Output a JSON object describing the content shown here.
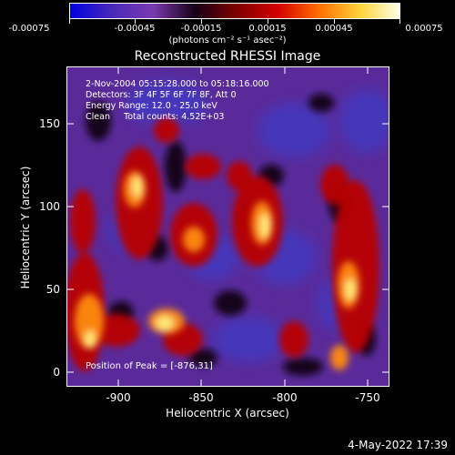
{
  "colorbar": {
    "tick_labels": [
      "-0.00075",
      "-0.00045",
      "-0.00015",
      "0.00015",
      "0.00045",
      "0.00075"
    ],
    "units_text": "(photons cm⁻² s⁻¹ asec⁻²)",
    "colors": [
      "#0000e0",
      "#4a2ab8",
      "#7a3ab0",
      "#160016",
      "#7a0000",
      "#d20000",
      "#ff6a00",
      "#ffd23a",
      "#ffffe6"
    ]
  },
  "title": "Reconstructed RHESSI Image",
  "info": {
    "line1": "2-Nov-2004 05:15:28.000 to 05:18:16.000",
    "line2": "Detectors: 3F 4F 5F 6F 7F 8F, Att 0",
    "line3": "Energy Range: 12.0 - 25.0 keV",
    "line4": "Clean     Total counts: 4.52E+03"
  },
  "peak_text": "Position of Peak = [-876,31]",
  "axes": {
    "xlabel": "Heliocentric X (arcsec)",
    "ylabel": "Heliocentric Y (arcsec)",
    "xticks": [
      "-900",
      "-850",
      "-800",
      "-750"
    ],
    "yticks": [
      "0",
      "50",
      "100",
      "150"
    ],
    "x_range": [
      -932,
      -738
    ],
    "y_range": [
      -6,
      187
    ]
  },
  "footer_date": "4-May-2022 17:39"
}
